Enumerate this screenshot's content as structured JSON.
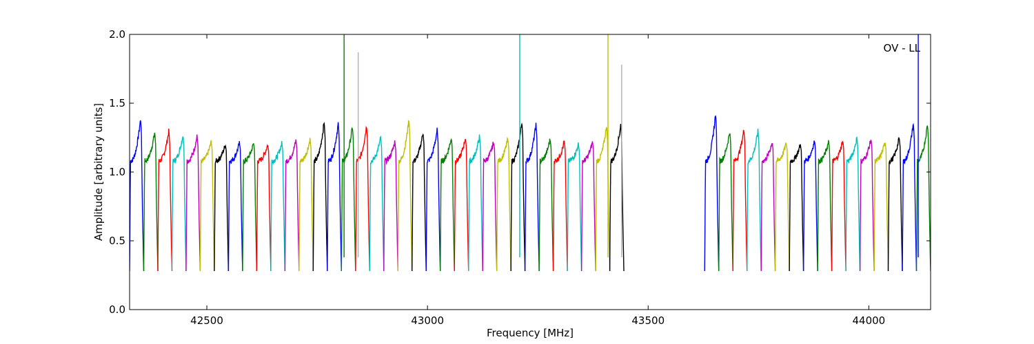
{
  "chart_data": {
    "type": "line",
    "title": "",
    "annotation": "OV - LL",
    "annotation_position": "top-right",
    "xlabel": "Frequency [MHz]",
    "ylabel": "Amplitude [arbitrary units]",
    "xlim": [
      42325,
      44140
    ],
    "ylim": [
      0.0,
      2.0
    ],
    "xticks": [
      42500,
      43000,
      43500,
      44000
    ],
    "xtick_labels": [
      "42500",
      "43000",
      "43500",
      "44000"
    ],
    "yticks": [
      0.0,
      0.5,
      1.0,
      1.5,
      2.0
    ],
    "ytick_labels": [
      "0.0",
      "0.5",
      "1.0",
      "1.5",
      "2.0"
    ],
    "grid": false,
    "legend": "none",
    "color_cycle": [
      "#0000ff",
      "#008000",
      "#ff0000",
      "#00bfbf",
      "#bf00bf",
      "#bfbf00",
      "#000000"
    ],
    "channel_width_mhz": 32,
    "channel_starts_mhz": [
      42325,
      42357,
      42389,
      42421,
      42453,
      42485,
      42517,
      42549,
      42581,
      42613,
      42645,
      42677,
      42709,
      42741,
      42773,
      42805,
      42837,
      42869,
      42901,
      42933,
      42965,
      42997,
      43029,
      43061,
      43093,
      43125,
      43157,
      43189,
      43221,
      43253,
      43285,
      43317,
      43349,
      43381,
      43413,
      43628,
      43660,
      43692,
      43724,
      43756,
      43788,
      43820,
      43852,
      43884,
      43916,
      43948,
      43980,
      44012,
      44044,
      44076,
      44108
    ],
    "channel_peak_amplitudes": [
      1.39,
      1.29,
      1.3,
      1.27,
      1.26,
      1.22,
      1.2,
      1.21,
      1.21,
      1.2,
      1.21,
      1.23,
      1.24,
      1.37,
      1.36,
      1.33,
      1.34,
      1.25,
      1.22,
      1.39,
      1.29,
      1.31,
      1.25,
      1.25,
      1.26,
      1.22,
      1.24,
      1.37,
      1.35,
      1.24,
      1.22,
      1.2,
      1.22,
      1.34,
      1.35,
      1.43,
      1.3,
      1.31,
      1.3,
      1.22,
      1.21,
      1.2,
      1.23,
      1.22,
      1.23,
      1.25,
      1.24,
      1.22,
      1.25,
      1.36,
      1.35
    ],
    "channel_min_amplitude": 0.28,
    "spikes": [
      {
        "x": 42811,
        "y": 2.0,
        "color": "#008000"
      },
      {
        "x": 42843,
        "y": 1.87,
        "color": "#b0b0b0"
      },
      {
        "x": 43209,
        "y": 2.0,
        "color": "#00bfbf"
      },
      {
        "x": 43409,
        "y": 2.0,
        "color": "#bfbf00"
      },
      {
        "x": 43440,
        "y": 1.78,
        "color": "#b0b0b0"
      },
      {
        "x": 44112,
        "y": 2.0,
        "color": "#0000ff"
      }
    ]
  }
}
